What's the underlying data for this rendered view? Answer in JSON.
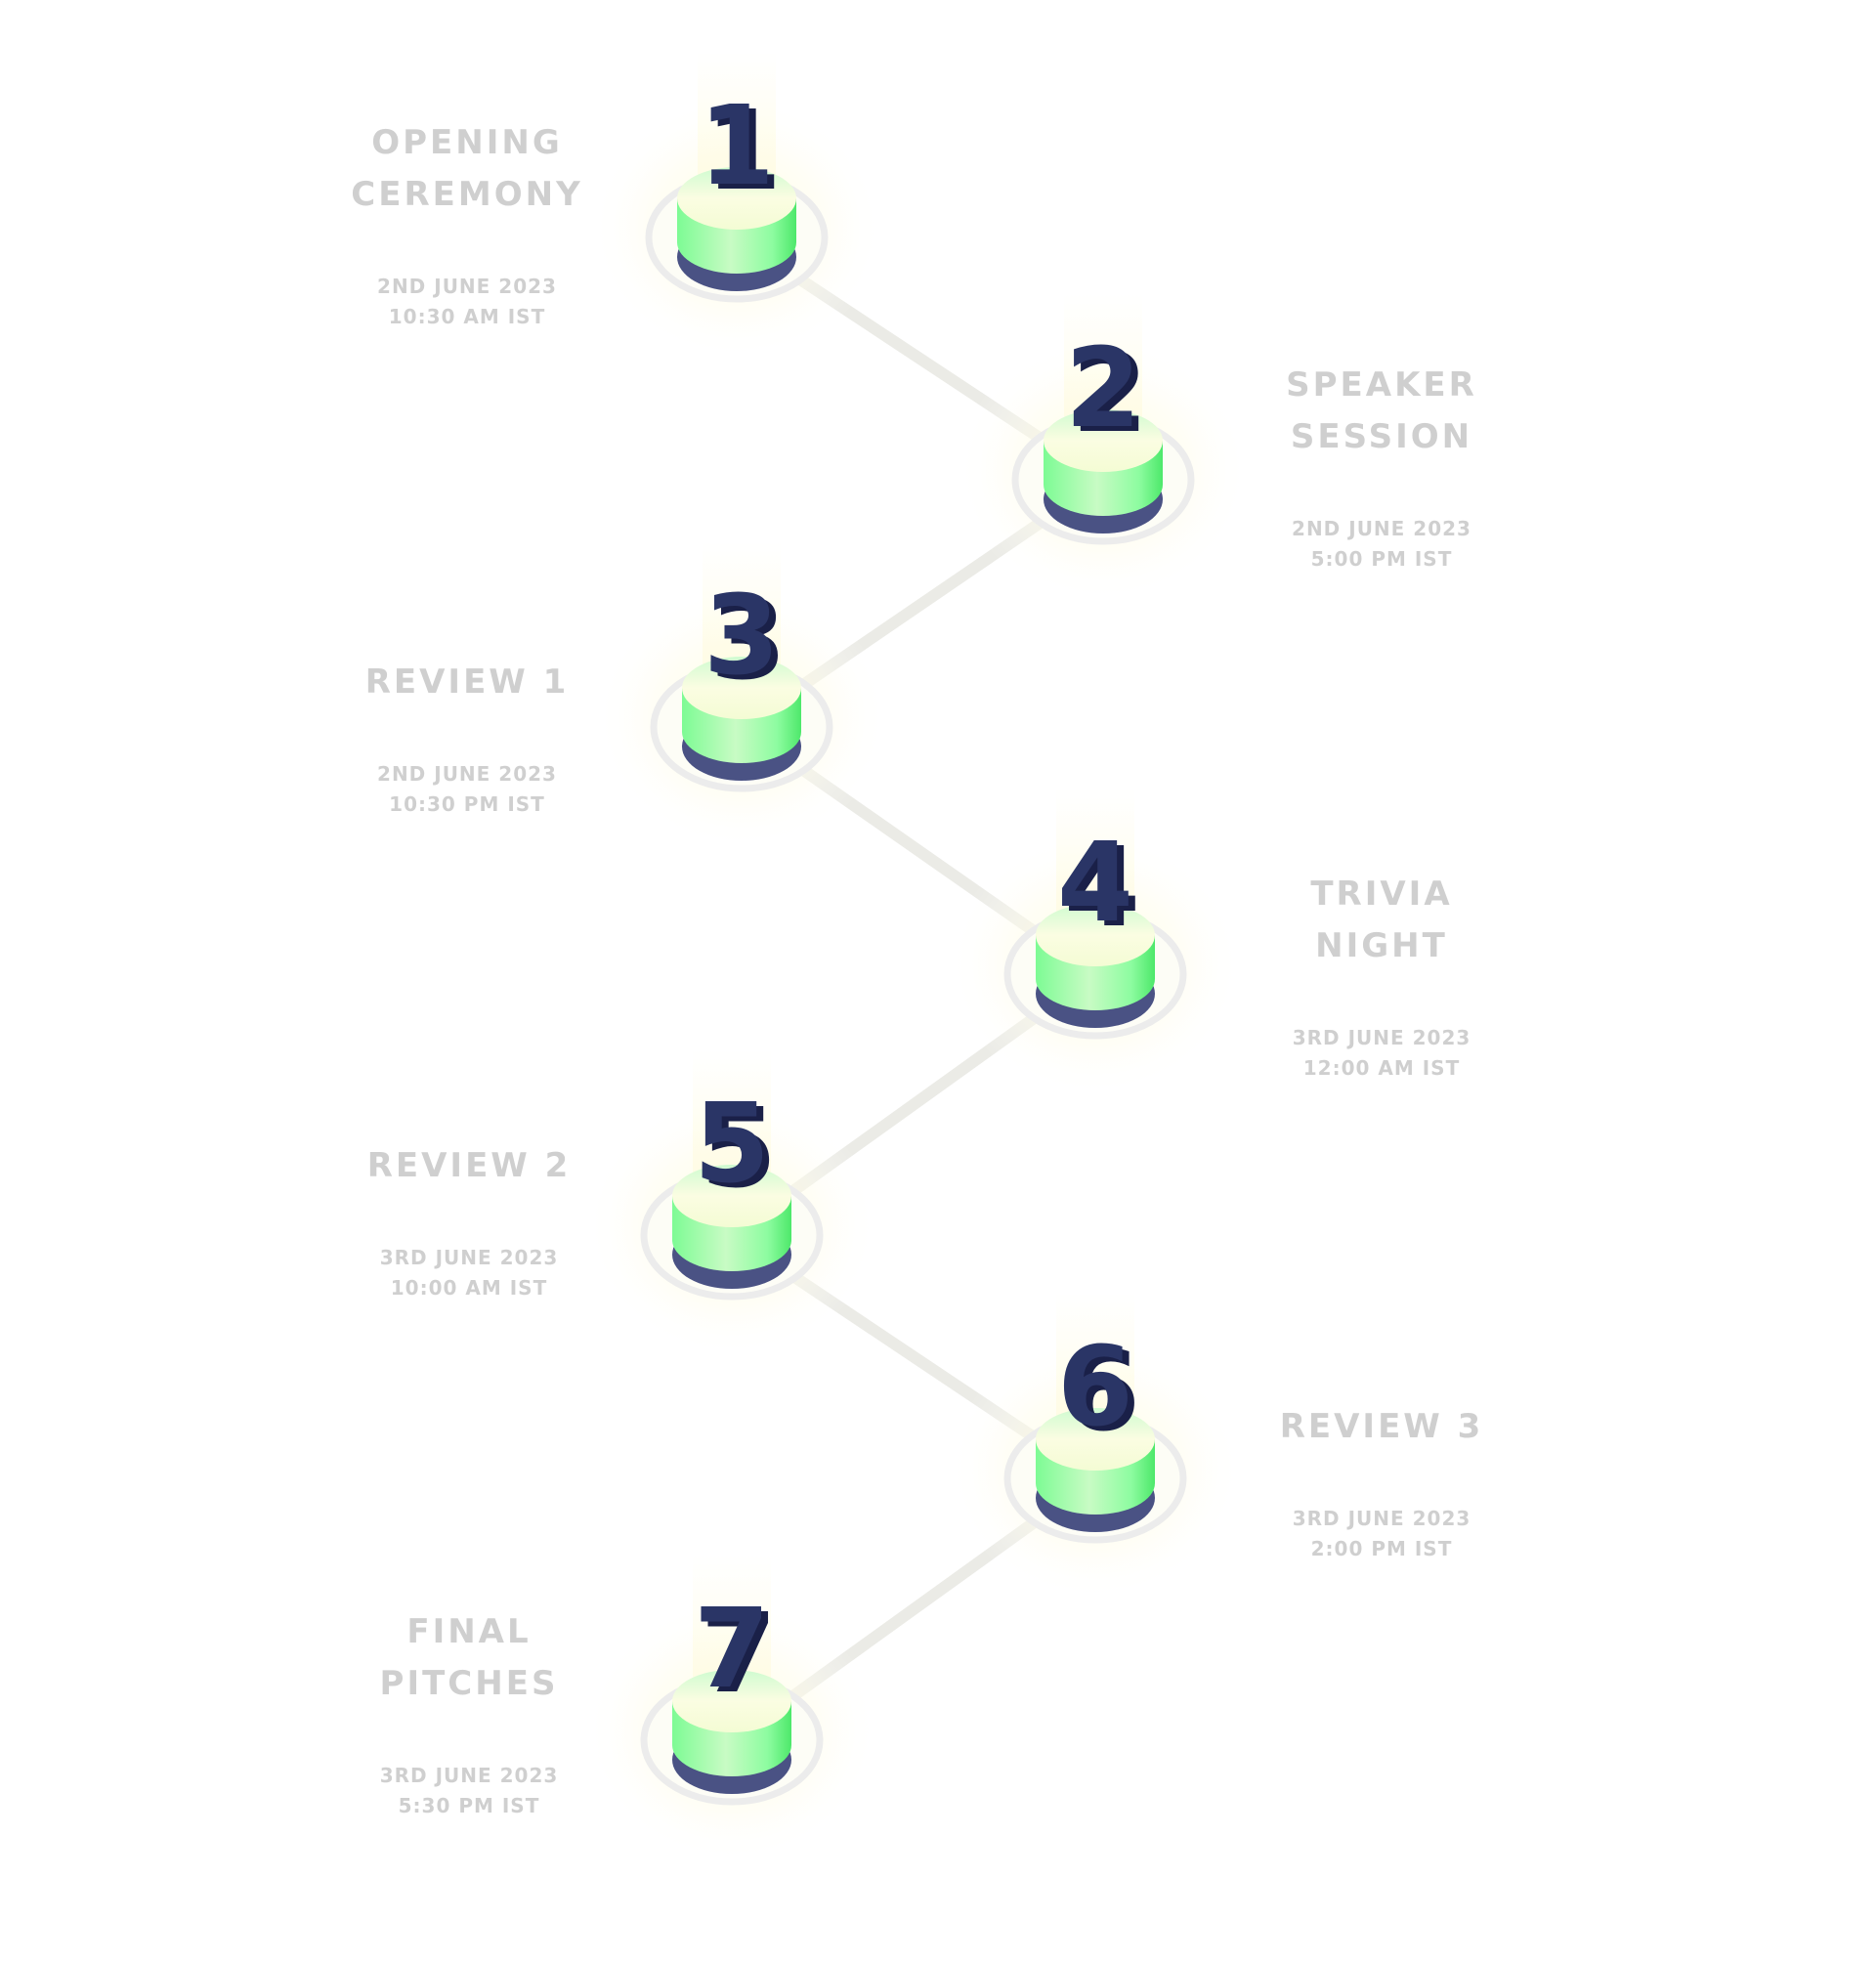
{
  "events": [
    {
      "number": "1",
      "title_lines": [
        "OPENING",
        "CEREMONY"
      ],
      "date": "2ND JUNE 2023",
      "time": "10:30 AM IST"
    },
    {
      "number": "2",
      "title_lines": [
        "SPEAKER",
        "SESSION"
      ],
      "date": "2ND JUNE 2023",
      "time": "5:00 PM IST"
    },
    {
      "number": "3",
      "title_lines": [
        "REVIEW 1"
      ],
      "date": "2ND JUNE 2023",
      "time": "10:30 PM IST"
    },
    {
      "number": "4",
      "title_lines": [
        "TRIVIA",
        "NIGHT"
      ],
      "date": "3RD JUNE 2023",
      "time": "12:00 AM IST"
    },
    {
      "number": "5",
      "title_lines": [
        "REVIEW 2"
      ],
      "date": "3RD JUNE 2023",
      "time": "10:00 AM IST"
    },
    {
      "number": "6",
      "title_lines": [
        "REVIEW 3"
      ],
      "date": "3RD JUNE 2023",
      "time": "2:00 PM IST"
    },
    {
      "number": "7",
      "title_lines": [
        "FINAL",
        "PITCHES"
      ],
      "date": "3RD JUNE 2023",
      "time": "5:30 PM IST"
    }
  ],
  "colors": {
    "connector": "#ebebe6",
    "ring": "#ececec",
    "glow": "#fffde8",
    "base": "#4a5284",
    "disc_top": "#f8fcd8",
    "disc_side": "#8dfca0",
    "numeral": "#2a3566",
    "numeral_side": "#1a2048",
    "text": "#cfcfcf"
  }
}
